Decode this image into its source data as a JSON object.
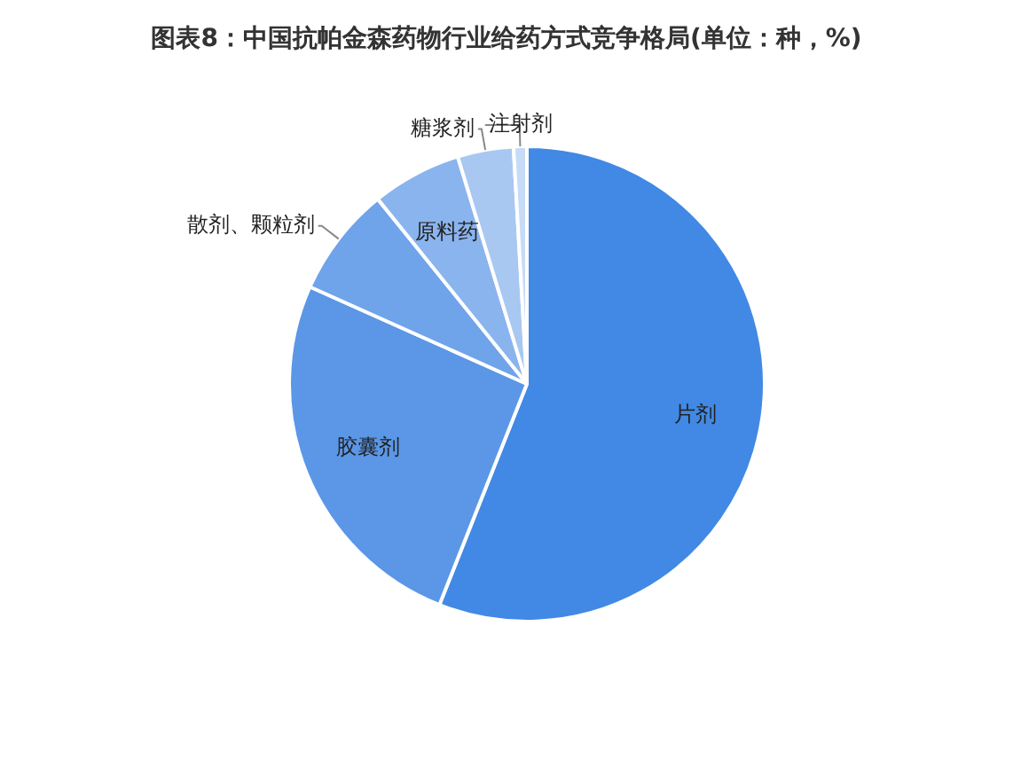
{
  "chart_data": {
    "type": "pie",
    "title": "图表8：中国抗帕金森药物行业给药方式竞争格局(单位：种，%)",
    "categories": [
      "片剂",
      "胶囊剂",
      "散剂、颗粒剂",
      "原料药",
      "糖浆剂",
      "注射剂"
    ],
    "values": [
      56.0,
      25.7,
      7.5,
      6.1,
      3.8,
      0.9
    ],
    "colors": [
      "#4189e4",
      "#5b97e6",
      "#6fa3ea",
      "#8ab4ee",
      "#a8c8f2",
      "#c6dbf6"
    ],
    "legend": false
  }
}
